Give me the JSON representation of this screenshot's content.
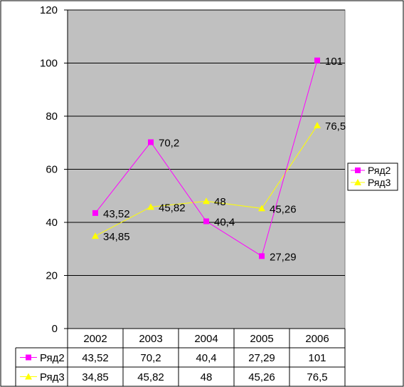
{
  "chart_data": {
    "type": "line",
    "categories": [
      "2002",
      "2003",
      "2004",
      "2005",
      "2006"
    ],
    "series": [
      {
        "name": "Ряд2",
        "values": [
          43.52,
          70.2,
          40.4,
          27.29,
          101
        ],
        "labels": [
          "43,52",
          "70,2",
          "40,4",
          "27,29",
          "101"
        ],
        "color": "#ff00ff",
        "marker": "square"
      },
      {
        "name": "Ряд3",
        "values": [
          34.85,
          45.82,
          48,
          45.26,
          76.5
        ],
        "labels": [
          "34,85",
          "45,82",
          "48",
          "45,26",
          "76,5"
        ],
        "color": "#ffff00",
        "marker": "triangle"
      }
    ],
    "ylim": [
      0,
      120
    ],
    "yticks": [
      0,
      20,
      40,
      60,
      80,
      100,
      120
    ],
    "grid": true,
    "plot_background": "#c0c0c0",
    "legend_placement": "right",
    "data_table": true
  }
}
